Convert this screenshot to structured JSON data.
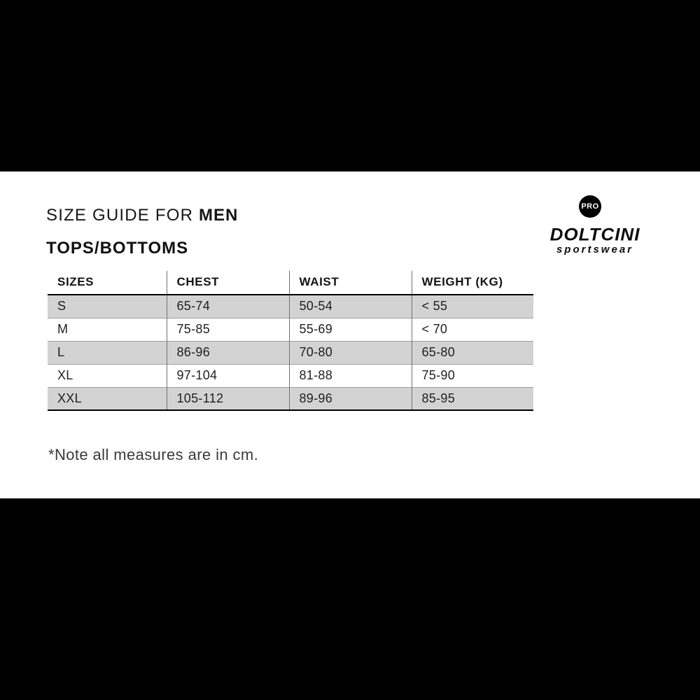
{
  "header": {
    "title_prefix": "SIZE GUIDE FOR ",
    "title_emphasis": "MEN",
    "subtitle": "TOPS/BOTTOMS"
  },
  "logo": {
    "badge_label": "PRO",
    "brand": "DOLTCINI",
    "tagline": "sportswear"
  },
  "size_table": {
    "columns": [
      "SIZES",
      "CHEST",
      "WAIST",
      "WEIGHT (KG)"
    ],
    "rows": [
      {
        "size": "S",
        "chest": "65-74",
        "waist": "50-54",
        "weight_kg": "< 55"
      },
      {
        "size": "M",
        "chest": "75-85",
        "waist": "55-69",
        "weight_kg": "< 70"
      },
      {
        "size": "L",
        "chest": "86-96",
        "waist": "70-80",
        "weight_kg": "65-80"
      },
      {
        "size": "XL",
        "chest": "97-104",
        "waist": "81-88",
        "weight_kg": "75-90"
      },
      {
        "size": "XXL",
        "chest": "105-112",
        "waist": "89-96",
        "weight_kg": "85-95"
      }
    ]
  },
  "footnote": "*Note all measures are in cm.",
  "colors": {
    "letterbox_bar": "#000000",
    "row_shade": "#d3d3d3",
    "column_divider": "#707070",
    "text": "#1b1b1b"
  }
}
